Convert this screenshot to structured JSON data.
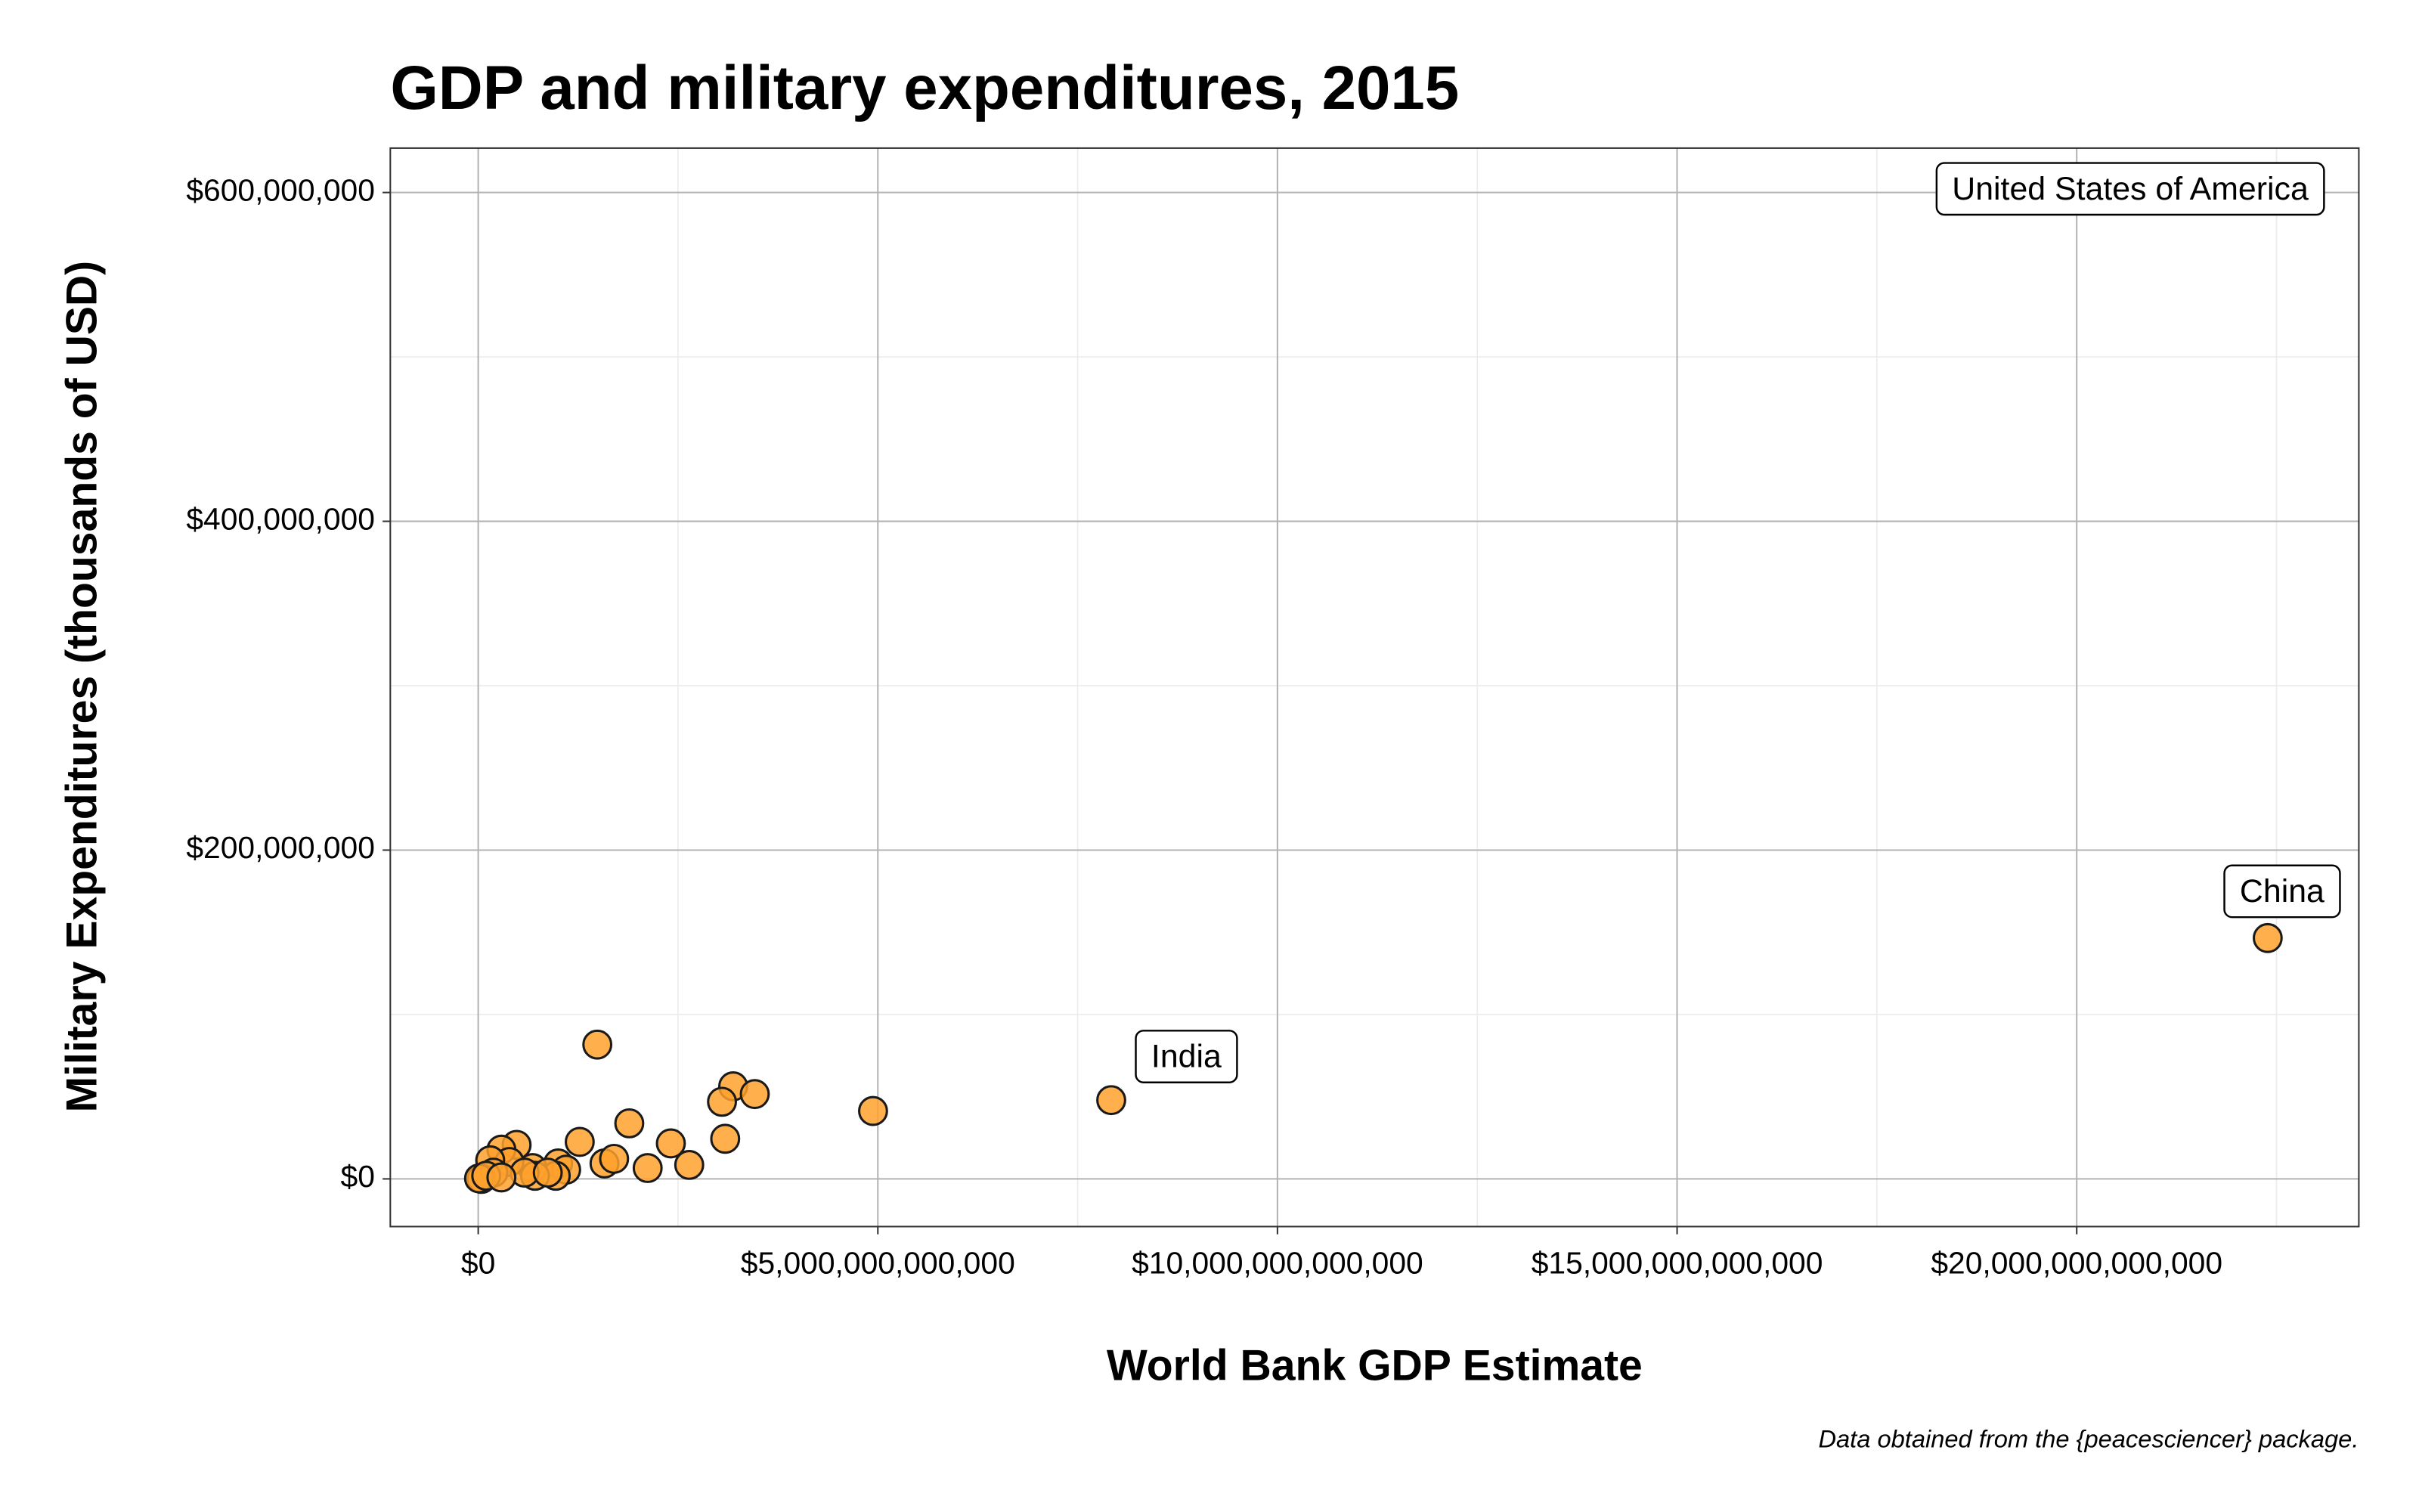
{
  "chart_data": {
    "type": "scatter",
    "title": "GDP and military expenditures, 2015",
    "x_label": "World Bank GDP Estimate",
    "y_label": "Military Expenditures (thousands of USD)",
    "caption": "Data obtained from the {peacesciencer} package.",
    "color": "#ffa12b",
    "grid": true,
    "xlim": [
      -1100000000000,
      23530000000000
    ],
    "ylim": [
      -29000000,
      627000000
    ],
    "xticks": [
      {
        "value": 0,
        "label": "$0"
      },
      {
        "value": 5000000000000,
        "label": "$5,000,000,000,000"
      },
      {
        "value": 10000000000000,
        "label": "$10,000,000,000,000"
      },
      {
        "value": 15000000000000,
        "label": "$15,000,000,000,000"
      },
      {
        "value": 20000000000000,
        "label": "$20,000,000,000,000"
      }
    ],
    "yticks": [
      {
        "value": 0,
        "label": "$0"
      },
      {
        "value": 200000000,
        "label": "$200,000,000"
      },
      {
        "value": 400000000,
        "label": "$400,000,000"
      },
      {
        "value": 600000000,
        "label": "$600,000,000"
      }
    ],
    "x_minor_ticks": [
      2500000000000,
      7500000000000,
      12500000000000,
      17500000000000,
      22500000000000
    ],
    "y_minor_ticks": [
      100000000,
      300000000,
      500000000
    ],
    "x": [
      22390000000000,
      7920000000000,
      1490000000000,
      3190000000000,
      3460000000000,
      3050000000000,
      3090000000000,
      4940000000000,
      1890000000000,
      1270000000000,
      2410000000000,
      2640000000000,
      2120000000000,
      1580000000000,
      1700000000000,
      480000000000,
      290000000000,
      1000000000000,
      1100000000000,
      970000000000,
      680000000000,
      710000000000,
      390000000000,
      150000000000,
      190000000000,
      580000000000,
      40000000000,
      10000000000,
      100000000000,
      290000000000,
      870000000000
    ],
    "y": [
      146500000,
      47900000,
      81700000,
      56300000,
      51600000,
      46900000,
      24400000,
      41300000,
      33800000,
      22500000,
      21600000,
      8500000,
      6600000,
      9400000,
      12200000,
      20700000,
      17800000,
      9400000,
      5600000,
      1900000,
      6600000,
      1900000,
      10300000,
      11300000,
      3800000,
      3800000,
      0,
      300000,
      1900000,
      900000,
      3800000
    ],
    "annotations": [
      {
        "text": "United States of America",
        "x": 20670000000000,
        "y": 601000000
      },
      {
        "text": "China",
        "x": 22570000000000,
        "y": 173700000
      },
      {
        "text": "India",
        "x": 8860000000000,
        "y": 73200000
      }
    ]
  }
}
